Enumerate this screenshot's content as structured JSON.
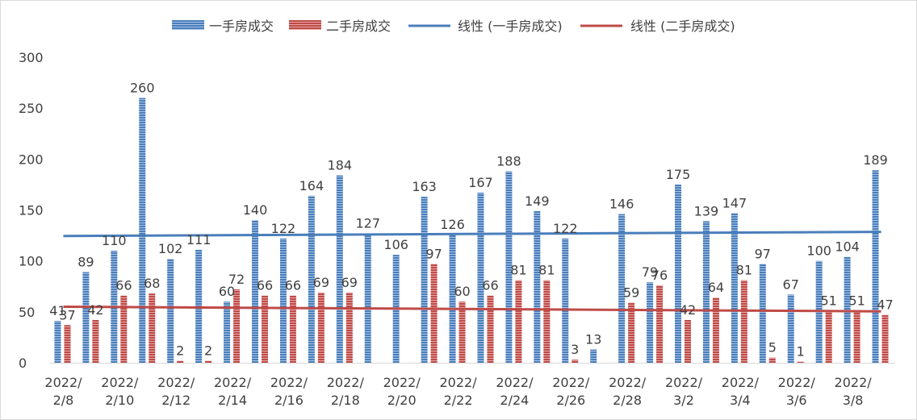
{
  "chart_data": {
    "type": "bar",
    "categories": [
      "2022/2/8",
      "2022/2/9",
      "2022/2/10",
      "2022/2/11",
      "2022/2/12",
      "2022/2/13",
      "2022/2/14",
      "2022/2/15",
      "2022/2/16",
      "2022/2/17",
      "2022/2/18",
      "2022/2/19",
      "2022/2/20",
      "2022/2/21",
      "2022/2/22",
      "2022/2/23",
      "2022/2/24",
      "2022/2/25",
      "2022/2/26",
      "2022/2/27",
      "2022/2/28",
      "2022/3/1",
      "2022/3/2",
      "2022/3/3",
      "2022/3/4",
      "2022/3/5",
      "2022/3/6",
      "2022/3/7",
      "2022/3/8",
      "2022/3/9"
    ],
    "x_tick_labels": [
      {
        "line1": "2022/",
        "line2": "2/8",
        "index": 0
      },
      {
        "line1": "2022/",
        "line2": "2/10",
        "index": 2
      },
      {
        "line1": "2022/",
        "line2": "2/12",
        "index": 4
      },
      {
        "line1": "2022/",
        "line2": "2/14",
        "index": 6
      },
      {
        "line1": "2022/",
        "line2": "2/16",
        "index": 8
      },
      {
        "line1": "2022/",
        "line2": "2/18",
        "index": 10
      },
      {
        "line1": "2022/",
        "line2": "2/20",
        "index": 12
      },
      {
        "line1": "2022/",
        "line2": "2/22",
        "index": 14
      },
      {
        "line1": "2022/",
        "line2": "2/24",
        "index": 16
      },
      {
        "line1": "2022/",
        "line2": "2/26",
        "index": 18
      },
      {
        "line1": "2022/",
        "line2": "2/28",
        "index": 20
      },
      {
        "line1": "2022/",
        "line2": "3/2",
        "index": 22
      },
      {
        "line1": "2022/",
        "line2": "3/4",
        "index": 24
      },
      {
        "line1": "2022/",
        "line2": "3/6",
        "index": 26
      },
      {
        "line1": "2022/",
        "line2": "3/8",
        "index": 28
      }
    ],
    "series": [
      {
        "name": "一手房成交",
        "color": "#4a7ebb",
        "values": [
          41,
          89,
          110,
          260,
          102,
          111,
          60,
          140,
          122,
          164,
          184,
          127,
          106,
          163,
          126,
          167,
          188,
          149,
          122,
          13,
          146,
          79,
          175,
          139,
          147,
          97,
          67,
          100,
          104,
          189
        ],
        "labels": [
          "41",
          "89",
          "110",
          "260",
          "102",
          "111",
          "60",
          "140",
          "122",
          "164",
          "184",
          "127",
          "106",
          "163",
          "126",
          "167",
          "188",
          "149",
          "122",
          "13",
          "146",
          "79",
          "175",
          "139",
          "147",
          "97",
          "67",
          "100",
          "104",
          "189"
        ]
      },
      {
        "name": "二手房成交",
        "color": "#be4b48",
        "values": [
          37,
          42,
          66,
          68,
          2,
          2,
          72,
          66,
          66,
          69,
          69,
          0,
          0,
          97,
          60,
          66,
          81,
          81,
          3,
          0,
          59,
          76,
          42,
          64,
          81,
          5,
          1,
          51,
          51,
          47
        ],
        "labels": [
          "37",
          "42",
          "66",
          "68",
          "2",
          "2",
          "72",
          "66",
          "66",
          "69",
          "69",
          "",
          "",
          "97",
          "60",
          "66",
          "81",
          "81",
          "3",
          "",
          "59",
          "76",
          "42",
          "64",
          "81",
          "5",
          "1",
          "51",
          "51",
          "47"
        ]
      }
    ],
    "trendlines": [
      {
        "name": "线性 (一手房成交)",
        "color": "#4a7ebb",
        "start": 124.5,
        "end": 128.5
      },
      {
        "name": "线性 (二手房成交)",
        "color": "#be4b48",
        "start": 55,
        "end": 50.5
      }
    ],
    "ylim": [
      0,
      300
    ],
    "yticks": [
      "0",
      "50",
      "100",
      "150",
      "200",
      "250",
      "300"
    ],
    "grid": false,
    "legend_position": "top",
    "title": "",
    "xlabel": "",
    "ylabel": ""
  }
}
